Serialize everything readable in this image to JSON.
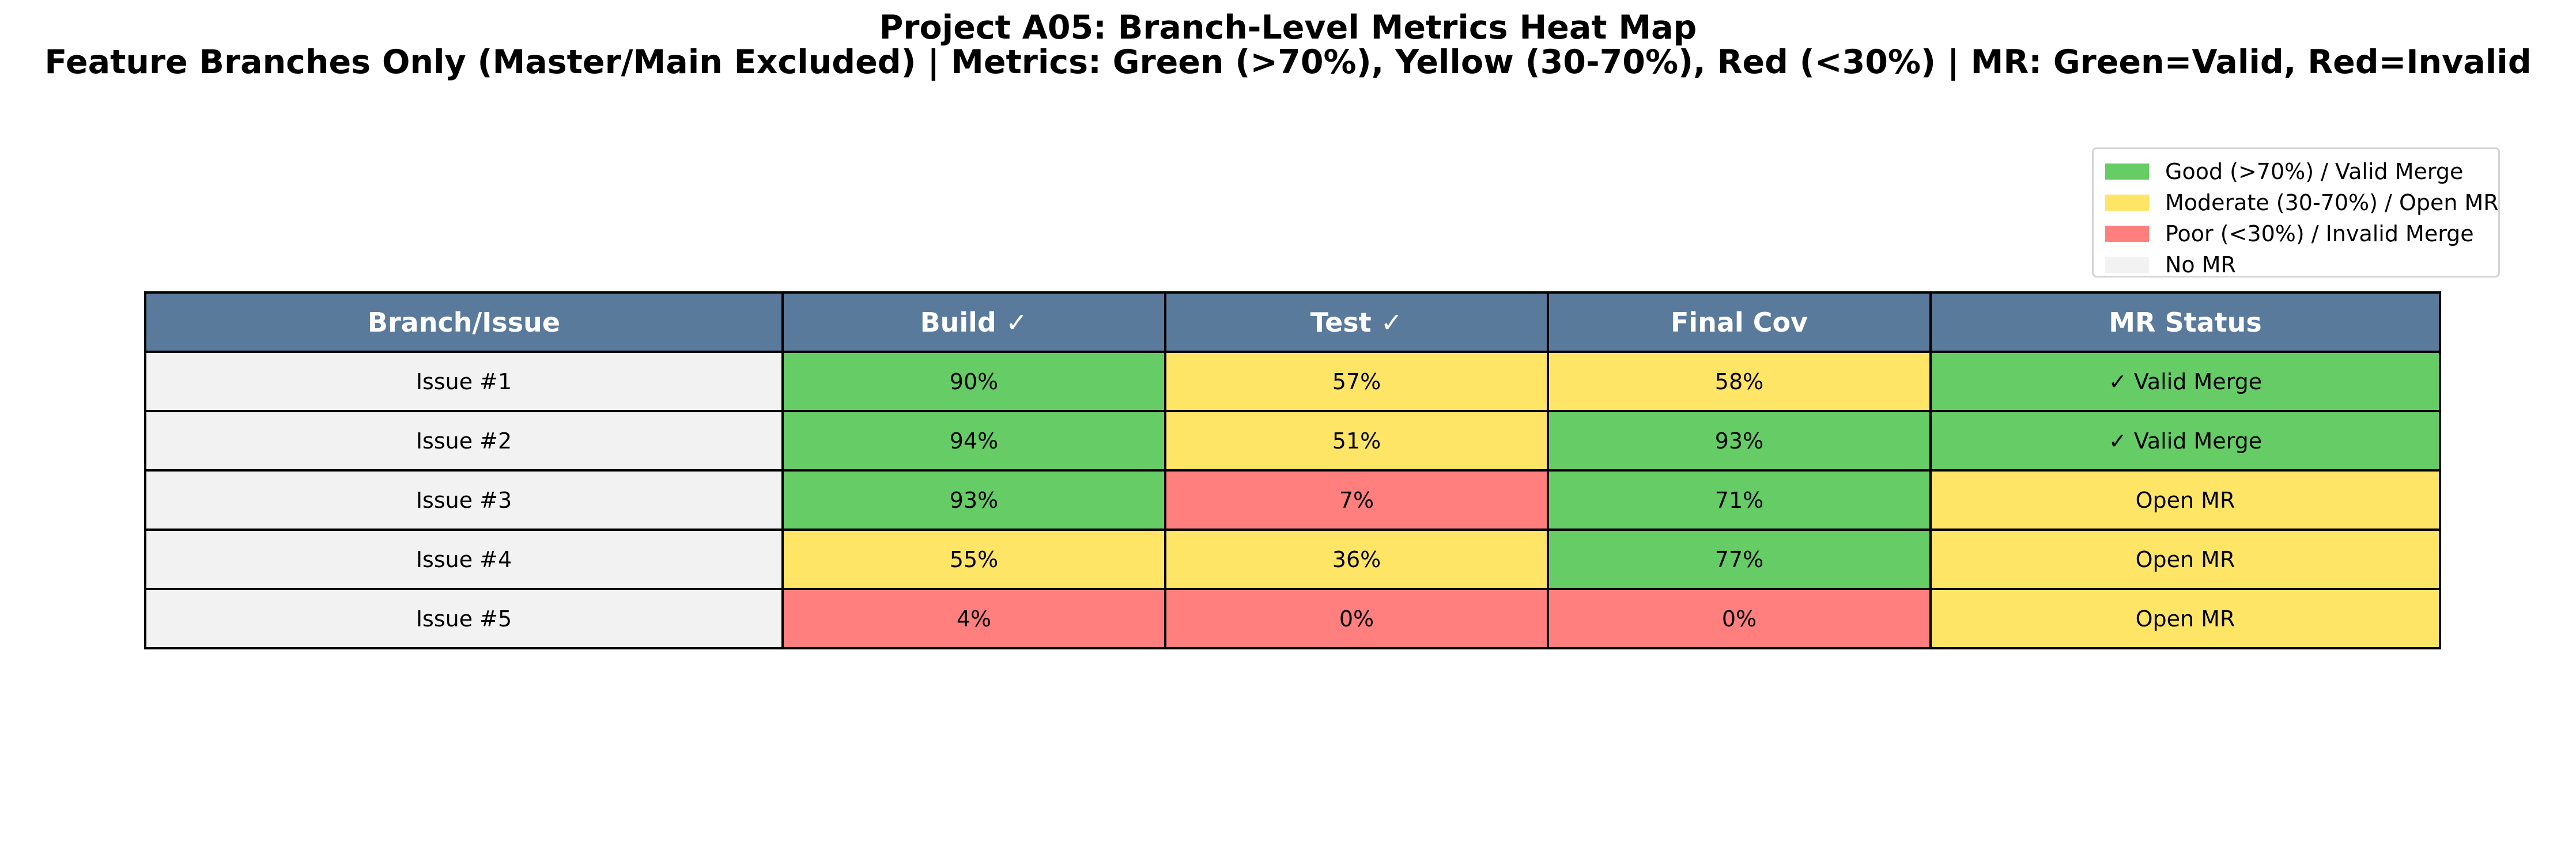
{
  "chart_data": {
    "type": "table",
    "title": "Project A05: Branch-Level Metrics Heat Map",
    "subtitle": "Feature Branches Only (Master/Main Excluded) | Metrics: Green (>70%), Yellow (30-70%), Red (<30%) | MR: Green=Valid, Red=Invalid",
    "columns": [
      "Branch/Issue",
      "Build ✓",
      "Test ✓",
      "Final Cov",
      "MR Status"
    ],
    "rows": [
      {
        "branch": "Issue #1",
        "build": "90%",
        "test": "57%",
        "cov": "58%",
        "mr": "✓ Valid Merge",
        "mr_state": "valid"
      },
      {
        "branch": "Issue #2",
        "build": "94%",
        "test": "51%",
        "cov": "93%",
        "mr": "✓ Valid Merge",
        "mr_state": "valid"
      },
      {
        "branch": "Issue #3",
        "build": "93%",
        "test": "7%",
        "cov": "71%",
        "mr": "Open MR",
        "mr_state": "open"
      },
      {
        "branch": "Issue #4",
        "build": "55%",
        "test": "36%",
        "cov": "77%",
        "mr": "Open MR",
        "mr_state": "open"
      },
      {
        "branch": "Issue #5",
        "build": "4%",
        "test": "0%",
        "cov": "0%",
        "mr": "Open MR",
        "mr_state": "open"
      }
    ],
    "thresholds": {
      "good_above": 70,
      "poor_below": 30
    },
    "legend": {
      "placement": "top-right",
      "items": [
        {
          "label": "Good (>70%) / Valid Merge",
          "color": "#66cc66"
        },
        {
          "label": "Moderate (30-70%) / Open MR",
          "color": "#ffe566"
        },
        {
          "label": "Poor (<30%) / Invalid Merge",
          "color": "#ff7f7f"
        },
        {
          "label": "No MR",
          "color": "#f2f2f2"
        }
      ]
    },
    "colors": {
      "header": "#5a7a9c",
      "header_text": "#ffffff",
      "good": "#66cc66",
      "moderate": "#ffe566",
      "poor": "#ff7f7f",
      "neutral": "#f2f2f2"
    }
  }
}
